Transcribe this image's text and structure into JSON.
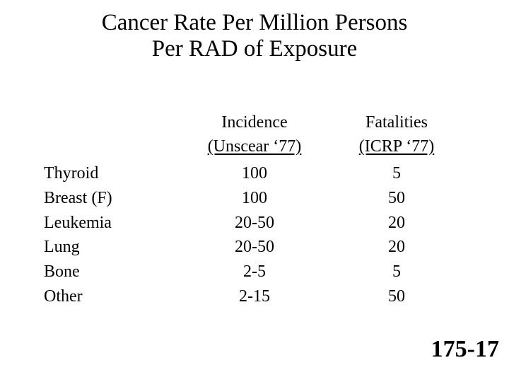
{
  "slide": {
    "title_line1": "Cancer Rate Per Million Persons",
    "title_line2": "Per RAD of Exposure",
    "slide_number": "175-17",
    "colors": {
      "background": "#ffffff",
      "text": "#000000"
    }
  },
  "table": {
    "columns": [
      {
        "label": "Incidence",
        "sublabel": "(Unscear ‘77)"
      },
      {
        "label": "Fatalities",
        "sublabel": "(ICRP ‘77)"
      }
    ],
    "rows": [
      {
        "label": "Thyroid",
        "incidence": "100",
        "fatalities": "5"
      },
      {
        "label": "Breast (F)",
        "incidence": "100",
        "fatalities": "50"
      },
      {
        "label": "Leukemia",
        "incidence": "20-50",
        "fatalities": "20"
      },
      {
        "label": "Lung",
        "incidence": "20-50",
        "fatalities": "20"
      },
      {
        "label": "Bone",
        "incidence": "2-5",
        "fatalities": "5"
      },
      {
        "label": "Other",
        "incidence": "2-15",
        "fatalities": "50"
      }
    ]
  }
}
